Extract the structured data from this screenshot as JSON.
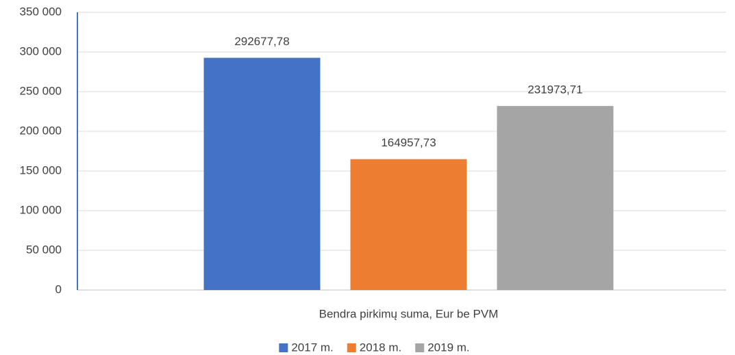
{
  "chart_data": {
    "type": "bar",
    "categories": [
      "Bendra pirkimų suma, Eur be PVM"
    ],
    "series": [
      {
        "name": "2017 m.",
        "color": "#4472c4",
        "values": [
          292677.78
        ],
        "value_labels": [
          "292677,78"
        ]
      },
      {
        "name": "2018 m.",
        "color": "#ed7d31",
        "values": [
          164957.73
        ],
        "value_labels": [
          "164957,73"
        ]
      },
      {
        "name": "2019 m.",
        "color": "#a5a5a5",
        "values": [
          231973.71
        ],
        "value_labels": [
          "231973,71"
        ]
      }
    ],
    "ylim": [
      0,
      350000
    ],
    "yticks": [
      0,
      {
        "value": 50000,
        "label": "50 000"
      },
      {
        "value": 100000,
        "label": "100 000"
      },
      {
        "value": 150000,
        "label": "150 000"
      },
      {
        "value": 200000,
        "label": "200 000"
      },
      {
        "value": 250000,
        "label": "250 000"
      },
      {
        "value": 300000,
        "label": "300 000"
      },
      {
        "value": 350000,
        "label": "350 000"
      }
    ],
    "grid": true,
    "legend": "bottom"
  }
}
